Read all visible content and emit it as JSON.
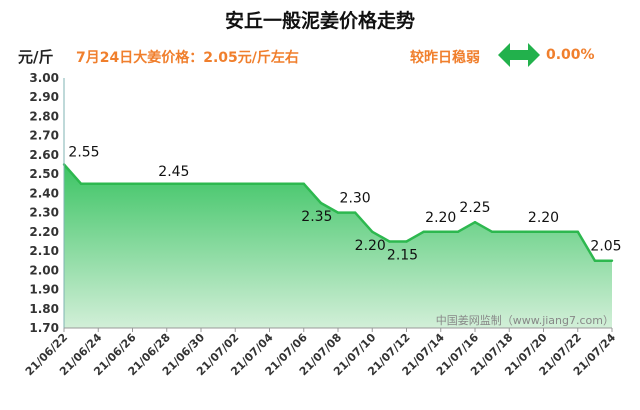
{
  "header": {
    "title": "安丘一般泥姜价格走势",
    "unit": "元/斤",
    "price_note": "7月24日大姜价格：2.05元/斤左右",
    "trend_label": "较昨日稳弱",
    "trend_value": "0.00%",
    "trend_icon": "double-arrow-icon"
  },
  "watermark": "中国姜网监制（www.jiang7.com）",
  "colors": {
    "accent": "#F07F2D",
    "line": "#2DB84F",
    "fill_top": "#3CC464",
    "fill_bottom": "#D2EFD8",
    "arrow": "#22B14C"
  },
  "chart_data": {
    "type": "area",
    "title": "安丘一般泥姜价格走势",
    "ylabel": "元/斤",
    "xlabel": "",
    "ylim": [
      1.7,
      3.0
    ],
    "yticks": [
      "1.70",
      "1.80",
      "1.90",
      "2.00",
      "2.10",
      "2.20",
      "2.30",
      "2.40",
      "2.50",
      "2.60",
      "2.70",
      "2.80",
      "2.90",
      "3.00"
    ],
    "x_tick_labels": [
      "21/06/22",
      "21/06/24",
      "21/06/26",
      "21/06/28",
      "21/06/30",
      "21/07/02",
      "21/07/04",
      "21/07/06",
      "21/07/08",
      "21/07/10",
      "21/07/12",
      "21/07/14",
      "21/07/16",
      "21/07/18",
      "21/07/20",
      "21/07/22",
      "21/07/24"
    ],
    "x": [
      "2021-06-22",
      "2021-06-23",
      "2021-06-24",
      "2021-06-25",
      "2021-06-26",
      "2021-06-27",
      "2021-06-28",
      "2021-06-29",
      "2021-06-30",
      "2021-07-01",
      "2021-07-02",
      "2021-07-03",
      "2021-07-04",
      "2021-07-05",
      "2021-07-06",
      "2021-07-07",
      "2021-07-08",
      "2021-07-09",
      "2021-07-10",
      "2021-07-11",
      "2021-07-12",
      "2021-07-13",
      "2021-07-14",
      "2021-07-15",
      "2021-07-16",
      "2021-07-17",
      "2021-07-18",
      "2021-07-19",
      "2021-07-20",
      "2021-07-21",
      "2021-07-22",
      "2021-07-23",
      "2021-07-24"
    ],
    "series": [
      {
        "values": [
          2.55,
          2.45,
          2.45,
          2.45,
          2.45,
          2.45,
          2.45,
          2.45,
          2.45,
          2.45,
          2.45,
          2.45,
          2.45,
          2.45,
          2.45,
          2.35,
          2.3,
          2.3,
          2.2,
          2.15,
          2.15,
          2.2,
          2.2,
          2.2,
          2.25,
          2.2,
          2.2,
          2.2,
          2.2,
          2.2,
          2.2,
          2.05,
          2.05
        ]
      }
    ],
    "data_labels": [
      {
        "x": "2021-06-22",
        "text": "2.55"
      },
      {
        "x": "2021-06-29",
        "text": "2.45"
      },
      {
        "x": "2021-07-07",
        "text": "2.35"
      },
      {
        "x": "2021-07-09",
        "text": "2.30"
      },
      {
        "x": "2021-07-10",
        "text": "2.20"
      },
      {
        "x": "2021-07-12",
        "text": "2.15"
      },
      {
        "x": "2021-07-14",
        "text": "2.20"
      },
      {
        "x": "2021-07-16",
        "text": "2.25"
      },
      {
        "x": "2021-07-20",
        "text": "2.20"
      },
      {
        "x": "2021-07-24",
        "text": "2.05"
      }
    ],
    "grid": false,
    "legend": "none"
  }
}
